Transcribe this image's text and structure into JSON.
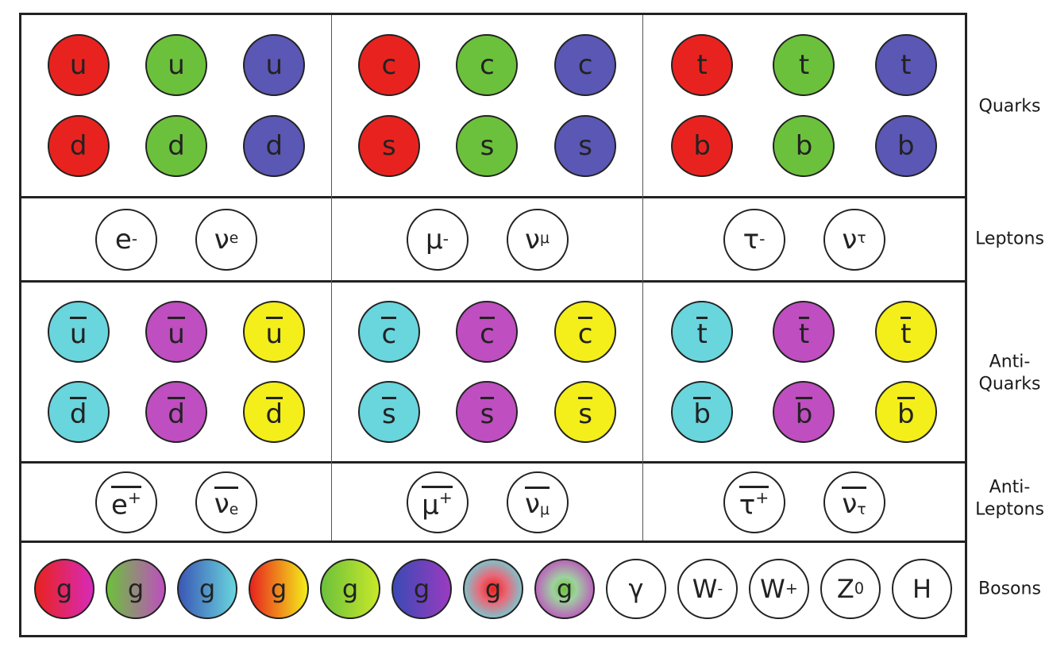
{
  "row_labels": {
    "quarks": "Quarks",
    "leptons": "Leptons",
    "antiquarks_1": "Anti-",
    "antiquarks_2": "Quarks",
    "antileptons_1": "Anti-",
    "antileptons_2": "Leptons",
    "bosons": "Bosons"
  },
  "colors": {
    "red": "#e8231f",
    "green": "#6cc13c",
    "blue": "#5b57b5",
    "cyan": "#69d5dd",
    "magenta": "#bf4ec0",
    "yellow": "#f4ee1a"
  },
  "quarks": {
    "gen1": {
      "upper": "u",
      "lower": "d"
    },
    "gen2": {
      "upper": "c",
      "lower": "s"
    },
    "gen3": {
      "upper": "t",
      "lower": "b"
    }
  },
  "leptons": {
    "gen1": {
      "charged": "e",
      "charged_sup": "-",
      "neutrino": "ν",
      "neutrino_sub": "e"
    },
    "gen2": {
      "charged": "μ",
      "charged_sup": "-",
      "neutrino": "ν",
      "neutrino_sub": "μ"
    },
    "gen3": {
      "charged": "τ",
      "charged_sup": "-",
      "neutrino": "ν",
      "neutrino_sub": "τ"
    }
  },
  "antileptons": {
    "gen1": {
      "charged": "e",
      "charged_sup": "+",
      "neutrino": "ν",
      "neutrino_sub": "e"
    },
    "gen2": {
      "charged": "μ",
      "charged_sup": "+",
      "neutrino": "ν",
      "neutrino_sub": "μ"
    },
    "gen3": {
      "charged": "τ",
      "charged_sup": "+",
      "neutrino": "ν",
      "neutrino_sub": "τ"
    }
  },
  "bosons": {
    "gluon": "g",
    "photon": "γ",
    "w_minus": "W",
    "w_minus_sup": "-",
    "w_plus": "W",
    "w_plus_sup": "+",
    "z": "Z",
    "z_sup": "0",
    "higgs": "H"
  }
}
